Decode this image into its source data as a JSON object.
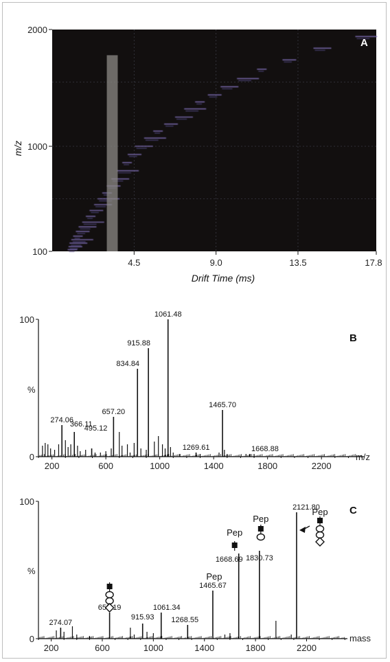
{
  "colors": {
    "heatmap_bg": "#120f0f",
    "trace": "#7f6fb8",
    "highlight": "#8c8a86",
    "line": "#111111"
  },
  "chart_data": [
    {
      "type": "heatmap",
      "panel_label": "A",
      "xlabel": "Drift Time (ms)",
      "ylabel": "m/z",
      "xticks": [
        "4.5",
        "9.0",
        "13.5",
        "17.8"
      ],
      "yticks": [
        "100",
        "1000",
        "2000"
      ],
      "xlim": [
        0,
        17.8
      ],
      "ylim": [
        100,
        2000
      ],
      "highlight_band": {
        "x_from": 3.0,
        "x_to": 3.6,
        "y_from": 100,
        "y_to": 1780
      },
      "trace_points": [
        [
          1.0,
          115
        ],
        [
          1.05,
          140
        ],
        [
          1.1,
          170
        ],
        [
          1.2,
          200
        ],
        [
          1.3,
          230
        ],
        [
          1.45,
          270
        ],
        [
          1.6,
          310
        ],
        [
          1.8,
          350
        ],
        [
          2.0,
          400
        ],
        [
          2.2,
          450
        ],
        [
          2.45,
          500
        ],
        [
          2.65,
          550
        ],
        [
          2.9,
          600
        ],
        [
          3.15,
          660
        ],
        [
          3.4,
          720
        ],
        [
          3.7,
          790
        ],
        [
          4.0,
          860
        ],
        [
          4.3,
          930
        ],
        [
          4.7,
          1000
        ],
        [
          5.2,
          1070
        ],
        [
          5.7,
          1130
        ],
        [
          6.3,
          1190
        ],
        [
          6.9,
          1250
        ],
        [
          7.4,
          1320
        ],
        [
          8.0,
          1380
        ],
        [
          8.7,
          1440
        ],
        [
          9.4,
          1510
        ],
        [
          10.3,
          1580
        ],
        [
          11.4,
          1660
        ],
        [
          12.8,
          1740
        ],
        [
          14.5,
          1840
        ],
        [
          16.8,
          1940
        ]
      ]
    },
    {
      "type": "bar",
      "panel_label": "B",
      "ylabel": "%",
      "xlabel": "m/z",
      "xticks": [
        "200",
        "600",
        "1000",
        "1400",
        "1800",
        "2200"
      ],
      "yticks": [
        "100",
        "0"
      ],
      "xlim": [
        100,
        2520
      ],
      "ylim": [
        0,
        100
      ],
      "peaks": [
        {
          "x": 274.06,
          "y": 23,
          "label": "274.06"
        },
        {
          "x": 366.11,
          "y": 18,
          "label": "366.11"
        },
        {
          "x": 495.12,
          "y": 6,
          "label": "495.12"
        },
        {
          "x": 657.2,
          "y": 29,
          "label": "657.20"
        },
        {
          "x": 834.84,
          "y": 64,
          "label": "834.84"
        },
        {
          "x": 915.88,
          "y": 79,
          "label": "915.88"
        },
        {
          "x": 1061.48,
          "y": 100,
          "label": "1061.48"
        },
        {
          "x": 1269.61,
          "y": 3,
          "label": "1269.61"
        },
        {
          "x": 1465.7,
          "y": 34,
          "label": "1465.70"
        },
        {
          "x": 1668.88,
          "y": 2,
          "label": "1668.88"
        }
      ],
      "minor_peaks": [
        [
          130,
          8
        ],
        [
          150,
          10
        ],
        [
          170,
          9
        ],
        [
          190,
          6
        ],
        [
          220,
          5
        ],
        [
          250,
          9
        ],
        [
          300,
          12
        ],
        [
          320,
          7
        ],
        [
          340,
          9
        ],
        [
          390,
          8
        ],
        [
          410,
          4
        ],
        [
          450,
          5
        ],
        [
          520,
          3
        ],
        [
          560,
          3
        ],
        [
          600,
          4
        ],
        [
          640,
          6
        ],
        [
          700,
          18
        ],
        [
          720,
          8
        ],
        [
          760,
          9
        ],
        [
          780,
          3
        ],
        [
          810,
          10
        ],
        [
          860,
          6
        ],
        [
          900,
          5
        ],
        [
          960,
          11
        ],
        [
          990,
          15
        ],
        [
          1020,
          9
        ],
        [
          1040,
          6
        ],
        [
          1080,
          7
        ],
        [
          1100,
          3
        ],
        [
          1150,
          2
        ],
        [
          1300,
          2
        ],
        [
          1440,
          3
        ],
        [
          1480,
          5
        ],
        [
          1500,
          2
        ],
        [
          1640,
          2
        ],
        [
          1700,
          2
        ]
      ]
    },
    {
      "type": "bar",
      "panel_label": "C",
      "ylabel": "%",
      "xlabel": "mass",
      "xticks": [
        "200",
        "600",
        "1000",
        "1400",
        "1800",
        "2200"
      ],
      "yticks": [
        "100",
        "0"
      ],
      "xlim": [
        100,
        2520
      ],
      "ylim": [
        0,
        100
      ],
      "peaks": [
        {
          "x": 274.07,
          "y": 8,
          "label": "274.07"
        },
        {
          "x": 657.19,
          "y": 19,
          "label": "657.19"
        },
        {
          "x": 915.93,
          "y": 11,
          "label": "915.93"
        },
        {
          "x": 1061.34,
          "y": 19,
          "label": "1061.34"
        },
        {
          "x": 1268.55,
          "y": 10,
          "label": "1268.55"
        },
        {
          "x": 1465.67,
          "y": 35,
          "label": "1465.67"
        },
        {
          "x": 1668.69,
          "y": 62,
          "label": "1668.69"
        },
        {
          "x": 1830.73,
          "y": 64,
          "label": "1830.73"
        },
        {
          "x": 2121.8,
          "y": 92,
          "label": "2121.80"
        }
      ],
      "minor_peaks": [
        [
          240,
          6
        ],
        [
          300,
          5
        ],
        [
          366,
          9
        ],
        [
          400,
          3
        ],
        [
          500,
          2
        ],
        [
          820,
          8
        ],
        [
          850,
          3
        ],
        [
          950,
          5
        ],
        [
          1000,
          4
        ],
        [
          1560,
          3
        ],
        [
          1600,
          4
        ],
        [
          1960,
          13
        ],
        [
          2080,
          3
        ]
      ],
      "annotations": [
        {
          "text": "Pep",
          "x": 1465.67
        },
        {
          "text": "Pep",
          "x": 1668.69
        },
        {
          "text": "Pep",
          "x": 1830.73
        },
        {
          "text": "Pep",
          "x": 2121.8
        }
      ]
    }
  ]
}
